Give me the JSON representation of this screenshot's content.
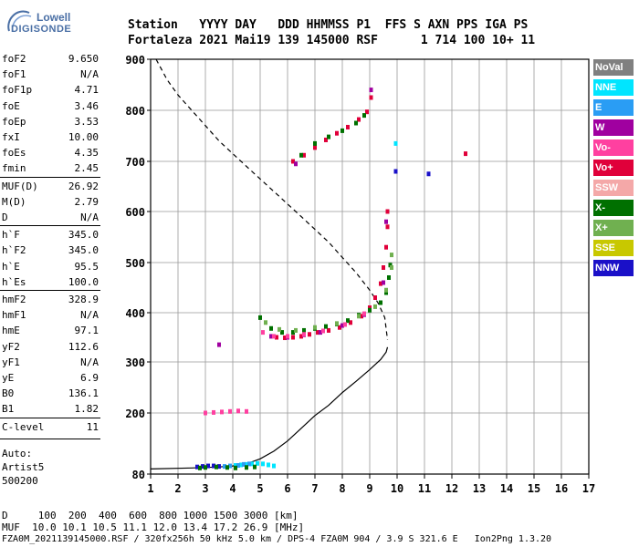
{
  "logo": {
    "line1": "Lowell",
    "line2": "DIGISONDE"
  },
  "header": {
    "row1": "Station   YYYY DAY   DDD HHMMSS P1  FFS S AXN PPS IGA PS",
    "row2": "Fortaleza 2021 Mai19 139 145000 RSF      1 714 100 10+ 11"
  },
  "params": [
    {
      "label": "foF2",
      "value": "9.650"
    },
    {
      "label": "foF1",
      "value": "N/A"
    },
    {
      "label": "foF1p",
      "value": "4.71"
    },
    {
      "label": "foE",
      "value": "3.46"
    },
    {
      "label": "foEp",
      "value": "3.53"
    },
    {
      "label": "fxI",
      "value": "10.00"
    },
    {
      "label": "foEs",
      "value": "4.35"
    },
    {
      "label": "fmin",
      "value": "2.45"
    },
    {
      "label": "MUF(D)",
      "value": "26.92"
    },
    {
      "label": "M(D)",
      "value": "2.79"
    },
    {
      "label": "D",
      "value": "N/A"
    },
    {
      "label": "h`F",
      "value": "345.0"
    },
    {
      "label": "h`F2",
      "value": "345.0"
    },
    {
      "label": "h`E",
      "value": "95.5"
    },
    {
      "label": "h`Es",
      "value": "100.0"
    },
    {
      "label": "hmF2",
      "value": "328.9"
    },
    {
      "label": "hmF1",
      "value": "N/A"
    },
    {
      "label": "hmE",
      "value": "97.1"
    },
    {
      "label": "yF2",
      "value": "112.6"
    },
    {
      "label": "yF1",
      "value": "N/A"
    },
    {
      "label": "yE",
      "value": "6.9"
    },
    {
      "label": "B0",
      "value": "136.1"
    },
    {
      "label": "B1",
      "value": "1.82"
    },
    {
      "label": "C-level",
      "value": "11"
    }
  ],
  "auto": {
    "line1": "Auto:",
    "line2": "Artist5",
    "line3": "500200"
  },
  "legend": [
    {
      "label": "NoVal",
      "color": "#808080"
    },
    {
      "label": "NNE",
      "color": "#00e5ff"
    },
    {
      "label": "E",
      "color": "#2a9df4"
    },
    {
      "label": "W",
      "color": "#a000a0"
    },
    {
      "label": "Vo-",
      "color": "#ff40a0"
    },
    {
      "label": "Vo+",
      "color": "#e0003a"
    },
    {
      "label": "SSW",
      "color": "#f4a8a8"
    },
    {
      "label": "X-",
      "color": "#007000"
    },
    {
      "label": "X+",
      "color": "#70b050"
    },
    {
      "label": "SSE",
      "color": "#c8c800"
    },
    {
      "label": "NNW",
      "color": "#1a10c8"
    }
  ],
  "footer": {
    "d_line": "D     100  200  400  600  800 1000 1500 3000 [km]",
    "muf_line": "MUF  10.0 10.1 10.5 11.1 12.0 13.4 17.2 26.9 [MHz]",
    "file_line": "FZA0M_2021139145000.RSF / 320fx256h 50 kHz 5.0 km / DPS-4 FZA0M 904 / 3.9 S 321.6 E   Ion2Png 1.3.20"
  },
  "chart_data": {
    "type": "scatter",
    "xlim": [
      1,
      17
    ],
    "ylim": [
      80,
      900
    ],
    "y_scale": "ionogram (expanded 80-300, linear 300-900)",
    "x_ticks": [
      "1",
      "2",
      "3",
      "4",
      "5",
      "6",
      "7",
      "8",
      "9",
      "10",
      "11",
      "12",
      "13",
      "14",
      "15",
      "16",
      "17"
    ],
    "y_ticks": [
      "80",
      "200",
      "300",
      "400",
      "500",
      "600",
      "700",
      "800",
      "900"
    ],
    "y_tick_values": [
      80,
      200,
      300,
      400,
      500,
      600,
      700,
      800,
      900
    ],
    "grid": true,
    "legend_position": "right",
    "series": [
      {
        "name": "Vo+",
        "color": "#e0003a",
        "points": [
          [
            5.6,
            350
          ],
          [
            5.9,
            349
          ],
          [
            6.2,
            350
          ],
          [
            6.5,
            352
          ],
          [
            6.8,
            356
          ],
          [
            7.1,
            360
          ],
          [
            7.5,
            364
          ],
          [
            7.9,
            370
          ],
          [
            8.3,
            380
          ],
          [
            8.7,
            393
          ],
          [
            9.0,
            410
          ],
          [
            9.2,
            430
          ],
          [
            9.4,
            458
          ],
          [
            9.5,
            490
          ],
          [
            9.6,
            530
          ],
          [
            9.65,
            570
          ],
          [
            9.65,
            600
          ]
        ]
      },
      {
        "name": "X-",
        "color": "#007000",
        "points": [
          [
            5.0,
            390
          ],
          [
            5.4,
            368
          ],
          [
            5.8,
            360
          ],
          [
            6.2,
            360
          ],
          [
            6.6,
            364
          ],
          [
            7.0,
            368
          ],
          [
            7.4,
            372
          ],
          [
            7.8,
            377
          ],
          [
            8.2,
            384
          ],
          [
            8.6,
            395
          ],
          [
            9.0,
            405
          ],
          [
            9.4,
            420
          ],
          [
            9.6,
            440
          ],
          [
            9.7,
            470
          ],
          [
            9.75,
            495
          ]
        ]
      },
      {
        "name": "X+",
        "color": "#70b050",
        "points": [
          [
            5.2,
            380
          ],
          [
            5.7,
            366
          ],
          [
            6.3,
            364
          ],
          [
            7.0,
            370
          ],
          [
            7.8,
            378
          ],
          [
            8.6,
            393
          ],
          [
            9.2,
            412
          ],
          [
            9.6,
            445
          ],
          [
            9.8,
            490
          ],
          [
            9.8,
            515
          ]
        ]
      },
      {
        "name": "W",
        "color": "#a000a0",
        "points": [
          [
            5.4,
            352
          ],
          [
            6.0,
            350
          ],
          [
            6.6,
            355
          ],
          [
            7.2,
            360
          ],
          [
            8.0,
            374
          ],
          [
            8.8,
            396
          ],
          [
            9.5,
            460
          ],
          [
            9.6,
            580
          ]
        ]
      },
      {
        "name": "Vo-",
        "color": "#ff40a0",
        "points": [
          [
            5.1,
            360
          ],
          [
            5.5,
            352
          ],
          [
            6.0,
            352
          ],
          [
            6.6,
            356
          ],
          [
            7.3,
            363
          ],
          [
            8.1,
            376
          ],
          [
            8.8,
            398
          ]
        ]
      },
      {
        "name": "NNE",
        "color": "#00e5ff",
        "points": [
          [
            4.1,
            97
          ],
          [
            4.3,
            98
          ],
          [
            4.5,
            99
          ],
          [
            4.7,
            100
          ],
          [
            4.9,
            101
          ],
          [
            5.1,
            100
          ],
          [
            5.3,
            98
          ],
          [
            5.5,
            96
          ],
          [
            9.95,
            735
          ]
        ]
      },
      {
        "name": "E",
        "color": "#2a9df4",
        "points": [
          [
            3.7,
            95
          ],
          [
            3.9,
            96
          ],
          [
            4.2,
            97
          ],
          [
            4.4,
            99
          ],
          [
            4.6,
            100
          ]
        ]
      },
      {
        "name": "NNW",
        "color": "#1a10c8",
        "points": [
          [
            2.7,
            94
          ],
          [
            2.9,
            95
          ],
          [
            3.1,
            96
          ],
          [
            3.3,
            96
          ],
          [
            3.5,
            95
          ],
          [
            9.95,
            680
          ],
          [
            11.15,
            675
          ]
        ]
      },
      {
        "name": "X- (E region)",
        "color": "#007000",
        "points": [
          [
            2.8,
            92
          ],
          [
            3.0,
            93
          ],
          [
            3.4,
            94
          ],
          [
            3.8,
            93
          ],
          [
            4.1,
            92
          ],
          [
            4.5,
            93
          ],
          [
            4.8,
            94
          ]
        ]
      },
      {
        "name": "Vo+ (F2 upper)",
        "color": "#e0003a",
        "points": [
          [
            6.2,
            700
          ],
          [
            6.6,
            712
          ],
          [
            7.0,
            727
          ],
          [
            7.4,
            742
          ],
          [
            7.8,
            755
          ],
          [
            8.2,
            767
          ],
          [
            8.6,
            782
          ],
          [
            8.9,
            797
          ],
          [
            9.05,
            825
          ],
          [
            12.5,
            715
          ]
        ]
      },
      {
        "name": "Vo- (E multi)",
        "color": "#ff40a0",
        "points": [
          [
            3.0,
            200
          ],
          [
            3.3,
            201
          ],
          [
            3.6,
            202
          ],
          [
            3.9,
            203
          ],
          [
            4.2,
            204
          ],
          [
            4.5,
            203
          ]
        ]
      },
      {
        "name": "X- (F2 upper)",
        "color": "#007000",
        "points": [
          [
            6.5,
            712
          ],
          [
            7.0,
            735
          ],
          [
            7.5,
            748
          ],
          [
            8.0,
            760
          ],
          [
            8.5,
            775
          ],
          [
            8.8,
            790
          ]
        ]
      },
      {
        "name": "W (isolated)",
        "color": "#a000a0",
        "points": [
          [
            3.5,
            335
          ],
          [
            9.05,
            840
          ],
          [
            6.3,
            695
          ]
        ]
      }
    ],
    "profile_dashed": [
      [
        1.2,
        900
      ],
      [
        1.6,
        860
      ],
      [
        2.0,
        830
      ],
      [
        2.5,
        800
      ],
      [
        3.0,
        770
      ],
      [
        3.5,
        740
      ],
      [
        4.0,
        715
      ],
      [
        4.5,
        690
      ],
      [
        5.0,
        665
      ],
      [
        5.5,
        640
      ],
      [
        6.0,
        615
      ],
      [
        6.5,
        590
      ],
      [
        7.0,
        565
      ],
      [
        7.5,
        540
      ],
      [
        8.0,
        510
      ],
      [
        8.5,
        480
      ],
      [
        9.0,
        445
      ],
      [
        9.3,
        420
      ],
      [
        9.55,
        390
      ],
      [
        9.65,
        345
      ]
    ],
    "profile_solid": [
      [
        0,
        90
      ],
      [
        2.5,
        92
      ],
      [
        3.5,
        94
      ],
      [
        4.0,
        96
      ],
      [
        4.5,
        100
      ],
      [
        5.0,
        110
      ],
      [
        5.5,
        125
      ],
      [
        6.0,
        145
      ],
      [
        6.5,
        170
      ],
      [
        7.0,
        195
      ],
      [
        7.5,
        215
      ],
      [
        8.0,
        240
      ],
      [
        8.5,
        262
      ],
      [
        9.0,
        285
      ],
      [
        9.4,
        305
      ],
      [
        9.6,
        320
      ],
      [
        9.65,
        330
      ]
    ]
  }
}
